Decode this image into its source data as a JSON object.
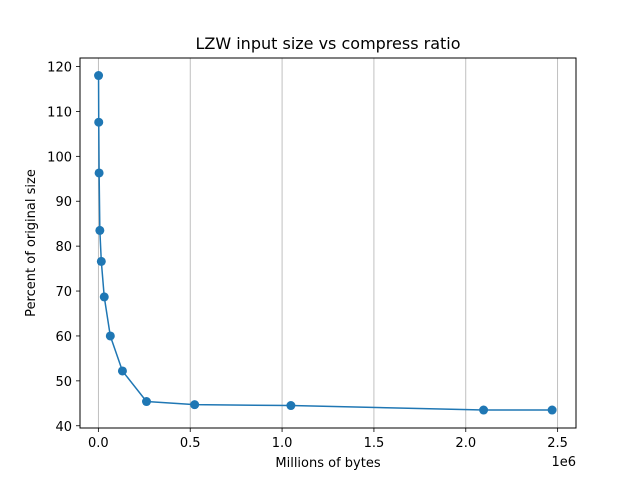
{
  "chart_data": {
    "type": "line",
    "title": "LZW input size vs compress ratio",
    "xlabel": "Millions of bytes",
    "ylabel": "Percent of original size",
    "x_offset_label": "1e6",
    "xlim": [
      -100000,
      2600000
    ],
    "ylim": [
      39.5,
      121.9
    ],
    "x_ticks": [
      0,
      500000,
      1000000,
      1500000,
      2000000,
      2500000
    ],
    "x_tick_labels": [
      "0.0",
      "0.5",
      "1.0",
      "1.5",
      "2.0",
      "2.5"
    ],
    "y_ticks": [
      40,
      50,
      60,
      70,
      80,
      90,
      100,
      110,
      120
    ],
    "y_tick_labels": [
      "40",
      "50",
      "60",
      "70",
      "80",
      "90",
      "100",
      "110",
      "120"
    ],
    "grid": "x-major",
    "marker": "circle",
    "series": [
      {
        "color": "#1f77b4",
        "x": [
          1000,
          2000,
          4000,
          8000,
          16000,
          32000,
          65000,
          131000,
          262000,
          524000,
          1048000,
          2097000,
          2470000
        ],
        "y": [
          118.0,
          107.6,
          96.3,
          83.5,
          76.6,
          68.7,
          60.0,
          52.2,
          45.4,
          44.7,
          44.5,
          43.5,
          43.5
        ]
      }
    ]
  }
}
